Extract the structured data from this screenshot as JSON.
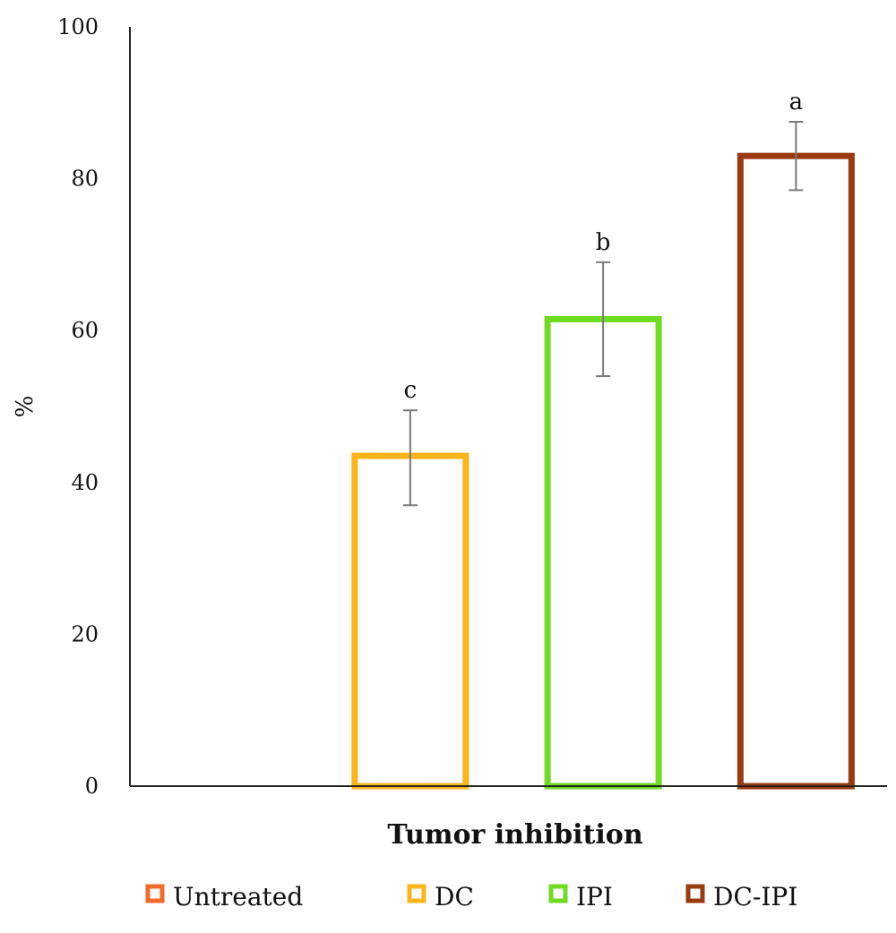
{
  "chart_data": {
    "type": "bar",
    "categories": [
      "Untreated",
      "DC",
      "IPI",
      "DC-IPI"
    ],
    "values": [
      0,
      43.5,
      61.5,
      83
    ],
    "error": [
      [
        0,
        0
      ],
      [
        37,
        49.5
      ],
      [
        54,
        69
      ],
      [
        78.5,
        87.5
      ]
    ],
    "significance": [
      "",
      "c",
      "b",
      "a"
    ],
    "colors": [
      "#f26b2a",
      "#fbb41a",
      "#6fdb21",
      "#9a3a10"
    ],
    "xlabel": "Tumor inhibition",
    "ylabel": "%",
    "ylim": [
      0,
      100
    ],
    "yticks": [
      0,
      20,
      40,
      60,
      80,
      100
    ],
    "legend": [
      "Untreated",
      "DC",
      "IPI",
      "DC-IPI"
    ],
    "legend_position": "bottom",
    "grid": false
  }
}
